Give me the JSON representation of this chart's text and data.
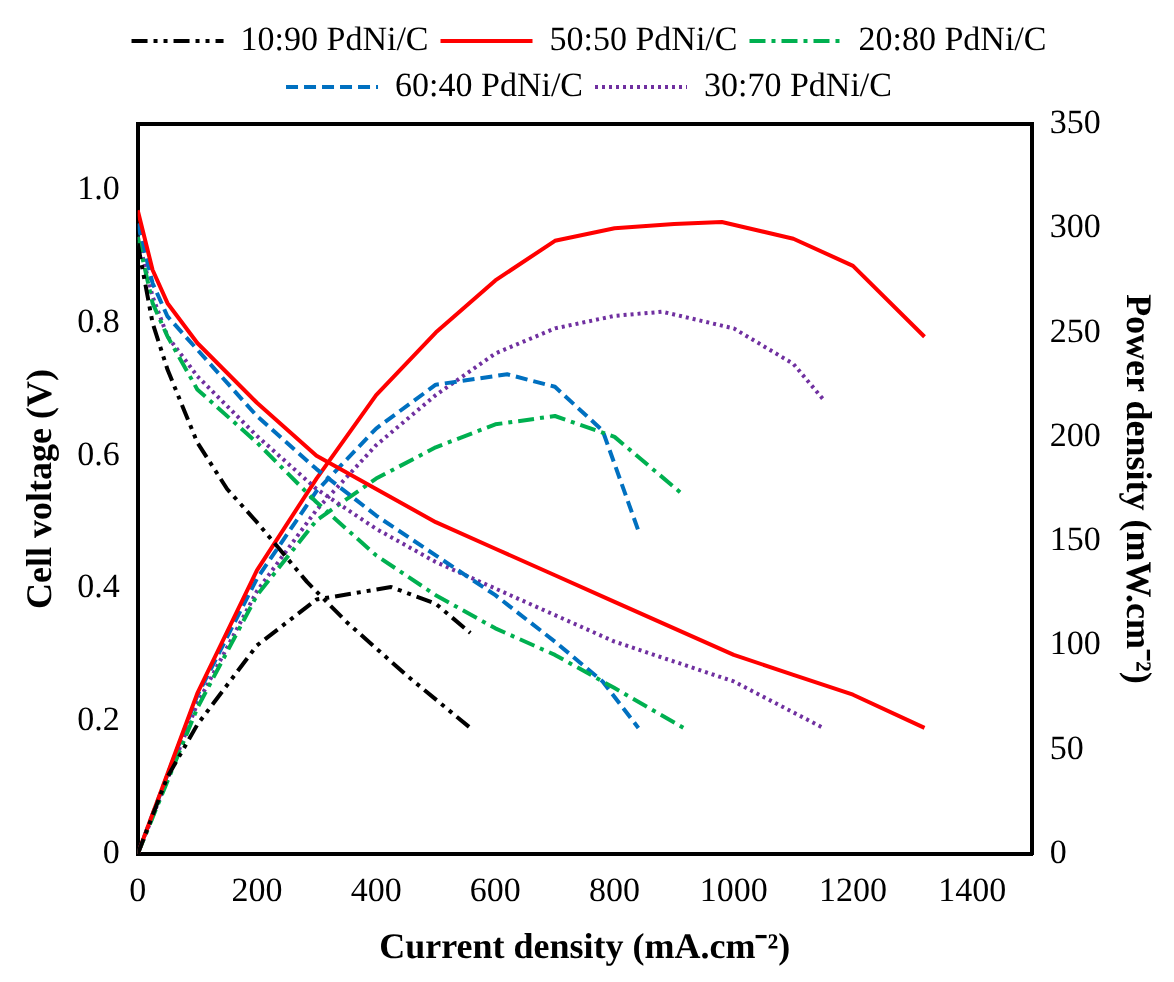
{
  "chart_data": {
    "type": "line",
    "xlabel": "Current density (mA.cm⁻²)",
    "ylabel": "Cell voltage (V)",
    "y2label": "Power density (mW.cm⁻²)",
    "xlim": [
      0,
      1500
    ],
    "xticks": [
      0,
      200,
      400,
      600,
      800,
      1000,
      1200,
      1400
    ],
    "ylim": [
      0,
      1.1
    ],
    "yticks": [
      0,
      0.2,
      0.4,
      0.6,
      0.8,
      {
        "value": 1,
        "label": "1.0"
      }
    ],
    "y2lim": [
      0,
      350
    ],
    "y2ticks": [
      0,
      50,
      100,
      150,
      200,
      250,
      300,
      350
    ],
    "grid": false,
    "legend": "top",
    "marker": "none",
    "series": [
      {
        "name": "10:90 PdNi/C",
        "color": "#000000",
        "line_style": "dashdotdot",
        "x": [
          0,
          25,
          50,
          100,
          150,
          200,
          284,
          350,
          450,
          558
        ],
        "values": [
          0.92,
          0.8,
          0.73,
          0.62,
          0.55,
          0.5,
          0.41,
          0.35,
          0.27,
          0.19
        ]
      },
      {
        "name": "50:50 PdNi/C",
        "color": "#ff0000",
        "line_style": "solid",
        "x": [
          0,
          25,
          50,
          100,
          200,
          300,
          400,
          500,
          600,
          700,
          800,
          900,
          1000,
          1100,
          1200,
          1320
        ],
        "values": [
          0.97,
          0.88,
          0.83,
          0.77,
          0.68,
          0.6,
          0.55,
          0.5,
          0.46,
          0.42,
          0.38,
          0.34,
          0.3,
          0.27,
          0.24,
          0.19
        ]
      },
      {
        "name": "20:80 PdNi/C",
        "color": "#00b050",
        "line_style": "dashdot",
        "x": [
          0,
          25,
          50,
          100,
          200,
          300,
          400,
          500,
          600,
          700,
          800,
          916
        ],
        "values": [
          0.93,
          0.83,
          0.78,
          0.7,
          0.62,
          0.53,
          0.45,
          0.39,
          0.34,
          0.3,
          0.25,
          0.19
        ]
      },
      {
        "name": "60:40 PdNi/C",
        "color": "#0070c0",
        "line_style": "dashed",
        "x": [
          0,
          25,
          50,
          100,
          200,
          300,
          400,
          500,
          600,
          700,
          780,
          840
        ],
        "values": [
          0.95,
          0.86,
          0.81,
          0.76,
          0.66,
          0.58,
          0.51,
          0.45,
          0.39,
          0.32,
          0.26,
          0.19
        ]
      },
      {
        "name": "30:70 PdNi/C",
        "color": "#7030a0",
        "line_style": "dotted",
        "x": [
          0,
          25,
          50,
          100,
          200,
          300,
          400,
          500,
          600,
          700,
          800,
          900,
          1000,
          1150
        ],
        "values": [
          0.93,
          0.84,
          0.78,
          0.72,
          0.63,
          0.55,
          0.49,
          0.44,
          0.4,
          0.36,
          0.32,
          0.29,
          0.26,
          0.19
        ]
      },
      {
        "color": "#000000",
        "line_style": "dashdotdot",
        "axis": "y2",
        "x": [
          0,
          50,
          100,
          200,
          300,
          425,
          500,
          558
        ],
        "values": [
          0,
          37,
          62,
          100,
          122,
          128,
          120,
          106
        ]
      },
      {
        "color": "#ff0000",
        "line_style": "solid",
        "axis": "y2",
        "x": [
          0,
          100,
          200,
          300,
          400,
          500,
          600,
          700,
          800,
          900,
          980,
          1100,
          1200,
          1320
        ],
        "values": [
          0,
          77,
          136,
          180,
          220,
          250,
          275,
          294,
          300,
          302,
          303,
          295,
          282,
          248
        ]
      },
      {
        "color": "#00b050",
        "line_style": "dashdot",
        "axis": "y2",
        "x": [
          0,
          100,
          200,
          300,
          400,
          500,
          600,
          700,
          800,
          916
        ],
        "values": [
          0,
          70,
          124,
          160,
          180,
          195,
          206,
          210,
          200,
          172
        ]
      },
      {
        "color": "#0070c0",
        "line_style": "dashed",
        "axis": "y2",
        "x": [
          0,
          100,
          200,
          300,
          400,
          500,
          620,
          700,
          780,
          840
        ],
        "values": [
          0,
          76,
          132,
          174,
          204,
          225,
          230,
          224,
          203,
          155
        ]
      },
      {
        "color": "#7030a0",
        "line_style": "dotted",
        "axis": "y2",
        "x": [
          0,
          100,
          200,
          300,
          400,
          500,
          600,
          700,
          800,
          880,
          1000,
          1100,
          1150
        ],
        "values": [
          0,
          72,
          126,
          165,
          196,
          220,
          240,
          252,
          258,
          260,
          252,
          235,
          218
        ]
      }
    ]
  }
}
